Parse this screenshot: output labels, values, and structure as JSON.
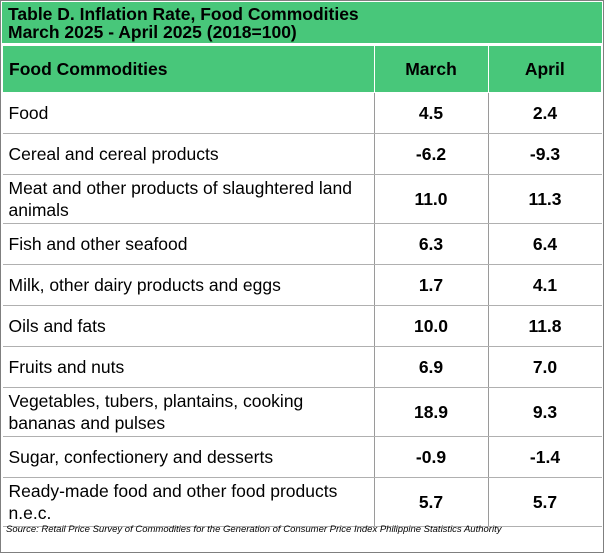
{
  "title": {
    "line1": "Table D.  Inflation Rate, Food Commodities",
    "line2": "March 2025 - April 2025 (2018=100)"
  },
  "headers": {
    "commodity": "Food Commodities",
    "march": "March",
    "april": "April"
  },
  "rows": [
    {
      "name": "Food",
      "march": "4.5",
      "april": "2.4"
    },
    {
      "name": "Cereal and cereal products",
      "march": "-6.2",
      "april": "-9.3"
    },
    {
      "name": "Meat and other products of slaughtered land animals",
      "march": "11.0",
      "april": "11.3"
    },
    {
      "name": "Fish and other seafood",
      "march": "6.3",
      "april": "6.4"
    },
    {
      "name": "Milk, other dairy products and eggs",
      "march": "1.7",
      "april": "4.1"
    },
    {
      "name": "Oils and fats",
      "march": "10.0",
      "april": "11.8"
    },
    {
      "name": "Fruits and nuts",
      "march": "6.9",
      "april": "7.0"
    },
    {
      "name": "Vegetables, tubers, plantains, cooking bananas and pulses",
      "march": "18.9",
      "april": "9.3"
    },
    {
      "name": "Sugar, confectionery and desserts",
      "march": "-0.9",
      "april": "-1.4"
    },
    {
      "name": "Ready-made food and other food products n.e.c.",
      "march": "5.7",
      "april": "5.7"
    }
  ],
  "source": "Source: Retail Price Survey of Commodities for the Generation of Consumer Price Index Philippine Statistics Authority",
  "colors": {
    "header_green": "#48c77a"
  }
}
